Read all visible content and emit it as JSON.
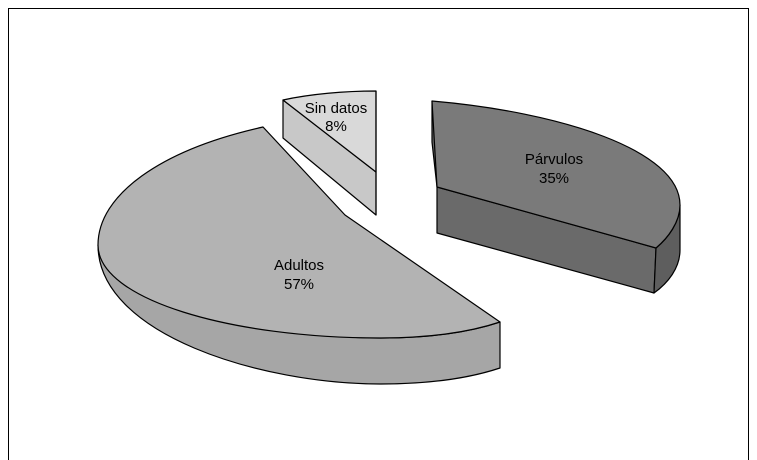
{
  "chart_data": {
    "type": "pie",
    "style": "3d-exploded",
    "title": "",
    "slices": [
      {
        "label": "Párvulos",
        "value": 35,
        "value_label": "35%",
        "color": "#7a7a7a",
        "side_color": "#6a6a6a"
      },
      {
        "label": "Adultos",
        "value": 57,
        "value_label": "57%",
        "color": "#b3b3b3",
        "side_color": "#a6a6a6"
      },
      {
        "label": "Sin datos",
        "value": 8,
        "value_label": "8%",
        "color": "#d9d9d9",
        "side_color": "#c8c8c8"
      }
    ],
    "legend": "none"
  }
}
